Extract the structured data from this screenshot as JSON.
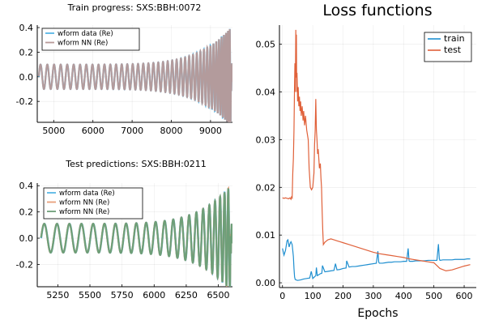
{
  "colors": {
    "wform_data": "#58b6e6",
    "wform_nn_train": "#b89a98",
    "wform_nn_test_orange": "#e9a07b",
    "wform_nn_test_green": "#6e9f78",
    "train": "#1f8fd0",
    "test": "#e0613a"
  },
  "chart_data": [
    {
      "type": "line",
      "title": "Train progress: SXS:BBH:0072",
      "xlabel": "",
      "ylabel": "",
      "xlim": [
        4580,
        9560
      ],
      "ylim": [
        -0.37,
        0.42
      ],
      "xticks": [
        "5000",
        "6000",
        "7000",
        "8000",
        "9000"
      ],
      "yticks": [
        "0.4",
        "0.2",
        "0.0",
        "-0.2"
      ],
      "legend_position": "top-left",
      "grid": true,
      "waveform": {
        "x_start": 4620,
        "x_merger": 9520,
        "amp_start": 0.1,
        "amp_peak": 0.4,
        "cycles": 42
      },
      "series": [
        {
          "name": "wform data (Re)",
          "color_key": "wform_data"
        },
        {
          "name": "wform NN (Re)",
          "color_key": "wform_nn_train"
        }
      ]
    },
    {
      "type": "line",
      "title": "Test predictions: SXS:BBH:0211",
      "xlabel": "",
      "ylabel": "",
      "xlim": [
        5090,
        6610
      ],
      "ylim": [
        -0.37,
        0.42
      ],
      "xticks": [
        "5250",
        "5500",
        "5750",
        "6000",
        "6250",
        "6500"
      ],
      "yticks": [
        "0.4",
        "0.2",
        "0.0",
        "-0.2"
      ],
      "legend_position": "top-left",
      "grid": true,
      "waveform": {
        "x_start": 5120,
        "x_merger": 6595,
        "amp_start": 0.11,
        "amp_peak": 0.4,
        "cycles": 22
      },
      "series": [
        {
          "name": "wform data (Re)",
          "color_key": "wform_data"
        },
        {
          "name": "wform NN (Re)",
          "color_key": "wform_nn_test_orange"
        },
        {
          "name": "wform NN (Re)",
          "color_key": "wform_nn_test_green"
        }
      ]
    },
    {
      "type": "line",
      "title": "Loss functions",
      "xlabel": "Epochs",
      "ylabel": "",
      "xlim": [
        -10,
        640
      ],
      "ylim": [
        -0.001,
        0.054
      ],
      "xticks": [
        "0",
        "100",
        "200",
        "300",
        "400",
        "500",
        "600"
      ],
      "yticks": [
        "0.05",
        "0.04",
        "0.03",
        "0.02",
        "0.01",
        "0.00"
      ],
      "legend_position": "top-right",
      "grid": true,
      "series": [
        {
          "name": "train",
          "color_key": "train",
          "x": [
            0,
            5,
            10,
            15,
            18,
            22,
            25,
            28,
            32,
            36,
            38,
            40,
            42,
            45,
            50,
            60,
            70,
            80,
            90,
            95,
            100,
            105,
            110,
            112,
            115,
            120,
            125,
            130,
            132,
            140,
            150,
            160,
            170,
            175,
            180,
            190,
            200,
            210,
            212,
            220,
            230,
            240,
            250,
            260,
            270,
            280,
            290,
            300,
            310,
            315,
            318,
            320,
            330,
            340,
            350,
            360,
            370,
            380,
            390,
            400,
            410,
            415,
            418,
            420,
            430,
            440,
            450,
            460,
            470,
            480,
            490,
            500,
            510,
            515,
            518,
            520,
            530,
            540,
            550,
            560,
            570,
            580,
            590,
            600,
            610,
            620
          ],
          "y": [
            0.0072,
            0.0058,
            0.0068,
            0.0088,
            0.009,
            0.0075,
            0.0082,
            0.0086,
            0.008,
            0.0055,
            0.003,
            0.0012,
            0.0007,
            0.0006,
            0.0005,
            0.0006,
            0.0008,
            0.0009,
            0.001,
            0.0024,
            0.0009,
            0.0012,
            0.0015,
            0.0032,
            0.0015,
            0.0017,
            0.0019,
            0.002,
            0.0036,
            0.0023,
            0.0024,
            0.0025,
            0.0026,
            0.004,
            0.0027,
            0.0028,
            0.003,
            0.0031,
            0.0046,
            0.0033,
            0.0034,
            0.0034,
            0.0035,
            0.0036,
            0.0037,
            0.0038,
            0.0039,
            0.004,
            0.0041,
            0.0066,
            0.0043,
            0.0041,
            0.0041,
            0.0042,
            0.0043,
            0.0043,
            0.0044,
            0.0044,
            0.0044,
            0.0045,
            0.0045,
            0.0072,
            0.0046,
            0.0045,
            0.0045,
            0.0046,
            0.0046,
            0.0046,
            0.0046,
            0.0047,
            0.0047,
            0.0047,
            0.0047,
            0.0081,
            0.005,
            0.0047,
            0.0048,
            0.0048,
            0.0048,
            0.0048,
            0.0049,
            0.0049,
            0.0049,
            0.0049,
            0.005,
            0.005
          ]
        },
        {
          "name": "test",
          "color_key": "test",
          "x": [
            0,
            5,
            10,
            15,
            20,
            25,
            28,
            30,
            32,
            34,
            36,
            38,
            40,
            41,
            42,
            43,
            44,
            45,
            46,
            47,
            48,
            49,
            50,
            52,
            54,
            56,
            58,
            60,
            62,
            65,
            68,
            70,
            73,
            76,
            80,
            85,
            88,
            92,
            96,
            100,
            104,
            106,
            108,
            110,
            112,
            114,
            116,
            118,
            120,
            122,
            125,
            127,
            129,
            131,
            133,
            135,
            140,
            150,
            160,
            170,
            180,
            190,
            200,
            220,
            240,
            260,
            280,
            300,
            320,
            340,
            360,
            380,
            400,
            420,
            440,
            460,
            480,
            500,
            520,
            540,
            560,
            580,
            600,
            620
          ],
          "y": [
            0.0178,
            0.0177,
            0.0178,
            0.0177,
            0.0176,
            0.0178,
            0.0175,
            0.018,
            0.0178,
            0.023,
            0.026,
            0.032,
            0.042,
            0.046,
            0.04,
            0.045,
            0.053,
            0.043,
            0.052,
            0.04,
            0.044,
            0.041,
            0.038,
            0.041,
            0.037,
            0.039,
            0.036,
            0.038,
            0.035,
            0.037,
            0.034,
            0.036,
            0.033,
            0.035,
            0.032,
            0.03,
            0.024,
            0.02,
            0.0195,
            0.02,
            0.023,
            0.029,
            0.032,
            0.0385,
            0.032,
            0.03,
            0.027,
            0.028,
            0.026,
            0.024,
            0.025,
            0.022,
            0.02,
            0.015,
            0.011,
            0.008,
            0.0085,
            0.009,
            0.0092,
            0.009,
            0.0088,
            0.0086,
            0.0084,
            0.008,
            0.0076,
            0.0072,
            0.0068,
            0.0064,
            0.0061,
            0.0059,
            0.0057,
            0.0055,
            0.0053,
            0.005,
            0.0048,
            0.0046,
            0.0044,
            0.0042,
            0.003,
            0.0025,
            0.0027,
            0.0031,
            0.0035,
            0.0038
          ]
        }
      ]
    }
  ]
}
